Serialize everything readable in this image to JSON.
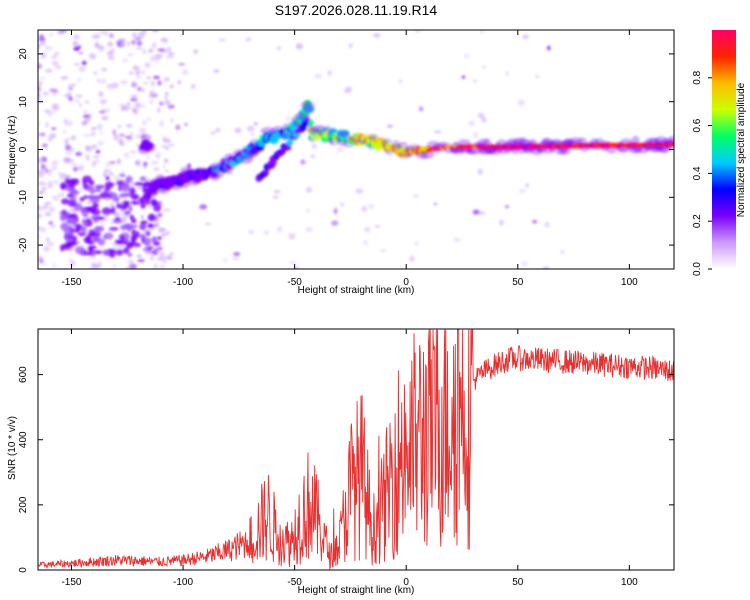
{
  "title": "S197.2026.028.11.19.R14",
  "spectrogram": {
    "type": "heatmap",
    "xlabel": "Height of straight line (km)",
    "ylabel": "Frequency (Hz)",
    "xlim": [
      -165,
      120
    ],
    "ylim": [
      -25,
      25
    ],
    "xticks": [
      -150,
      -100,
      -50,
      0,
      50,
      100
    ],
    "yticks": [
      -20,
      -10,
      0,
      10,
      20
    ],
    "colorbar": {
      "label": "Normalized spectral amplitude",
      "range": [
        0,
        1
      ],
      "ticks": [
        "0.0",
        "0.2",
        "0.4",
        "0.6",
        "0.8"
      ],
      "colors": [
        "#ffffff",
        "#cc99ff",
        "#7a00ff",
        "#0000ff",
        "#00ccff",
        "#00ff66",
        "#ccff00",
        "#ffbb00",
        "#ff2200",
        "#ff0066"
      ]
    },
    "trace": [
      [
        -115,
        -8
      ],
      [
        -100,
        -6
      ],
      [
        -85,
        -4.5
      ],
      [
        -72,
        -1
      ],
      [
        -62,
        2.5
      ],
      [
        -55,
        3
      ],
      [
        -48,
        5.5
      ],
      [
        -44,
        9
      ],
      [
        -42,
        3
      ],
      [
        -35,
        3
      ],
      [
        -25,
        2.5
      ],
      [
        -15,
        1.5
      ],
      [
        0,
        -0.5
      ],
      [
        20,
        0.5
      ],
      [
        40,
        0.5
      ],
      [
        60,
        0.6
      ],
      [
        80,
        0.8
      ],
      [
        120,
        1.0
      ]
    ]
  },
  "snr": {
    "type": "line",
    "xlabel": "Height of straight line (km)",
    "ylabel": "SNR (10 * v/v)",
    "xlim": [
      -165,
      120
    ],
    "ylim": [
      0,
      740
    ],
    "xticks": [
      -150,
      -100,
      -50,
      0,
      50,
      100
    ],
    "yticks": [
      0,
      200,
      400,
      600
    ],
    "line_color": "#e83030",
    "series": [
      {
        "x": -165,
        "y": 15
      },
      {
        "x": -150,
        "y": 20
      },
      {
        "x": -140,
        "y": 25
      },
      {
        "x": -130,
        "y": 30
      },
      {
        "x": -120,
        "y": 28
      },
      {
        "x": -110,
        "y": 25
      },
      {
        "x": -100,
        "y": 30
      },
      {
        "x": -90,
        "y": 40
      },
      {
        "x": -80,
        "y": 60
      },
      {
        "x": -70,
        "y": 90
      },
      {
        "x": -62,
        "y": 170
      },
      {
        "x": -58,
        "y": 110
      },
      {
        "x": -52,
        "y": 80
      },
      {
        "x": -48,
        "y": 150
      },
      {
        "x": -43,
        "y": 210
      },
      {
        "x": -38,
        "y": 120
      },
      {
        "x": -34,
        "y": 40
      },
      {
        "x": -30,
        "y": 80
      },
      {
        "x": -25,
        "y": 250
      },
      {
        "x": -20,
        "y": 300
      },
      {
        "x": -15,
        "y": 120
      },
      {
        "x": -10,
        "y": 200
      },
      {
        "x": -5,
        "y": 330
      },
      {
        "x": 0,
        "y": 370
      },
      {
        "x": 5,
        "y": 400
      },
      {
        "x": 10,
        "y": 440
      },
      {
        "x": 15,
        "y": 470
      },
      {
        "x": 20,
        "y": 510
      },
      {
        "x": 25,
        "y": 545
      },
      {
        "x": 30,
        "y": 580
      },
      {
        "x": 35,
        "y": 610
      },
      {
        "x": 40,
        "y": 630
      },
      {
        "x": 45,
        "y": 645
      },
      {
        "x": 50,
        "y": 650
      },
      {
        "x": 60,
        "y": 645
      },
      {
        "x": 70,
        "y": 640
      },
      {
        "x": 80,
        "y": 635
      },
      {
        "x": 90,
        "y": 630
      },
      {
        "x": 100,
        "y": 625
      },
      {
        "x": 110,
        "y": 620
      },
      {
        "x": 120,
        "y": 610
      }
    ]
  }
}
